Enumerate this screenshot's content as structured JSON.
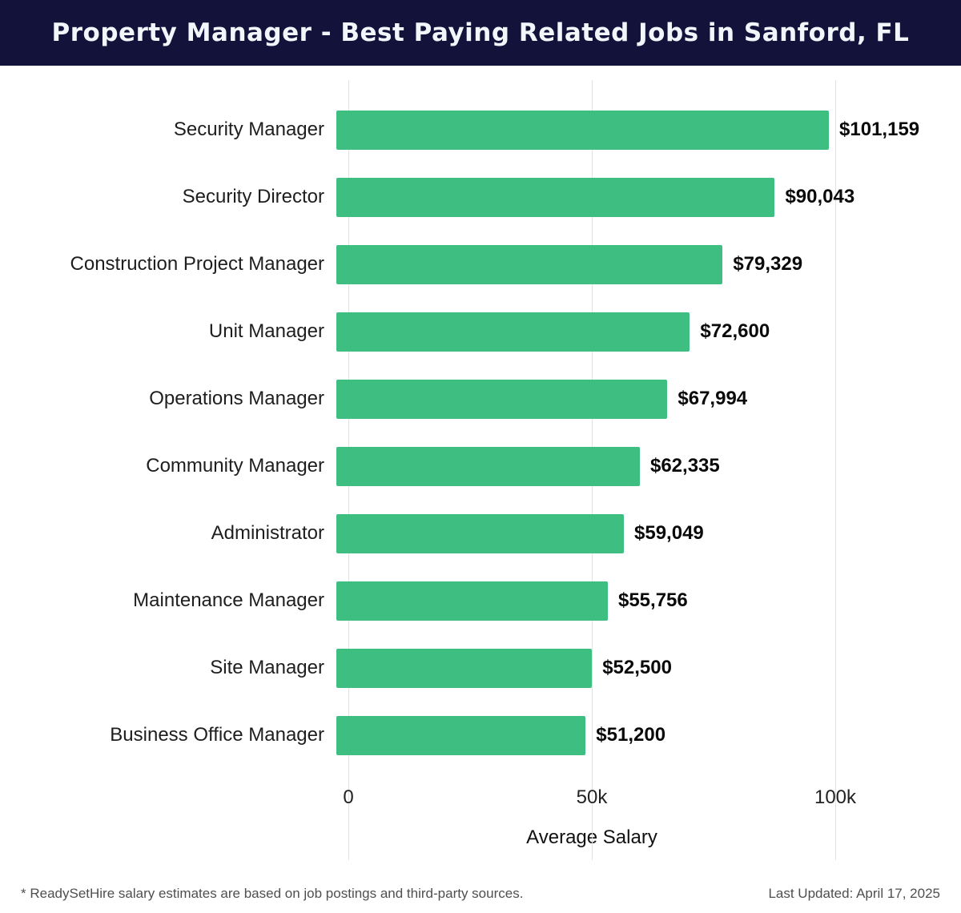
{
  "header": {
    "title": "Property Manager - Best Paying Related Jobs in Sanford, FL"
  },
  "chart_data": {
    "type": "bar",
    "orientation": "horizontal",
    "title": "Property Manager - Best Paying Related Jobs in Sanford, FL",
    "categories": [
      "Security Manager",
      "Security Director",
      "Construction Project Manager",
      "Unit Manager",
      "Operations Manager",
      "Community Manager",
      "Administrator",
      "Maintenance Manager",
      "Site Manager",
      "Business Office Manager"
    ],
    "values": [
      101159,
      90043,
      79329,
      72600,
      67994,
      62335,
      59049,
      55756,
      52500,
      51200
    ],
    "value_labels": [
      "$101,159",
      "$90,043",
      "$79,329",
      "$72,600",
      "$67,994",
      "$62,335",
      "$59,049",
      "$55,756",
      "$52,500",
      "$51,200"
    ],
    "xlabel": "Average Salary",
    "ylabel": "",
    "xlim": [
      0,
      105000
    ],
    "xticks": {
      "values": [
        0,
        50000,
        100000
      ],
      "labels": [
        "0",
        "50k",
        "100k"
      ]
    },
    "grid": true,
    "bar_color": "#3fbe82",
    "background_color": "#ffffff",
    "header_color": "#12123b",
    "legend": "none"
  },
  "axis": {
    "xlabel": "Average Salary"
  },
  "footer": {
    "note": "* ReadySetHire salary estimates are based on job postings and third-party sources.",
    "updated": "Last Updated: April 17, 2025"
  }
}
